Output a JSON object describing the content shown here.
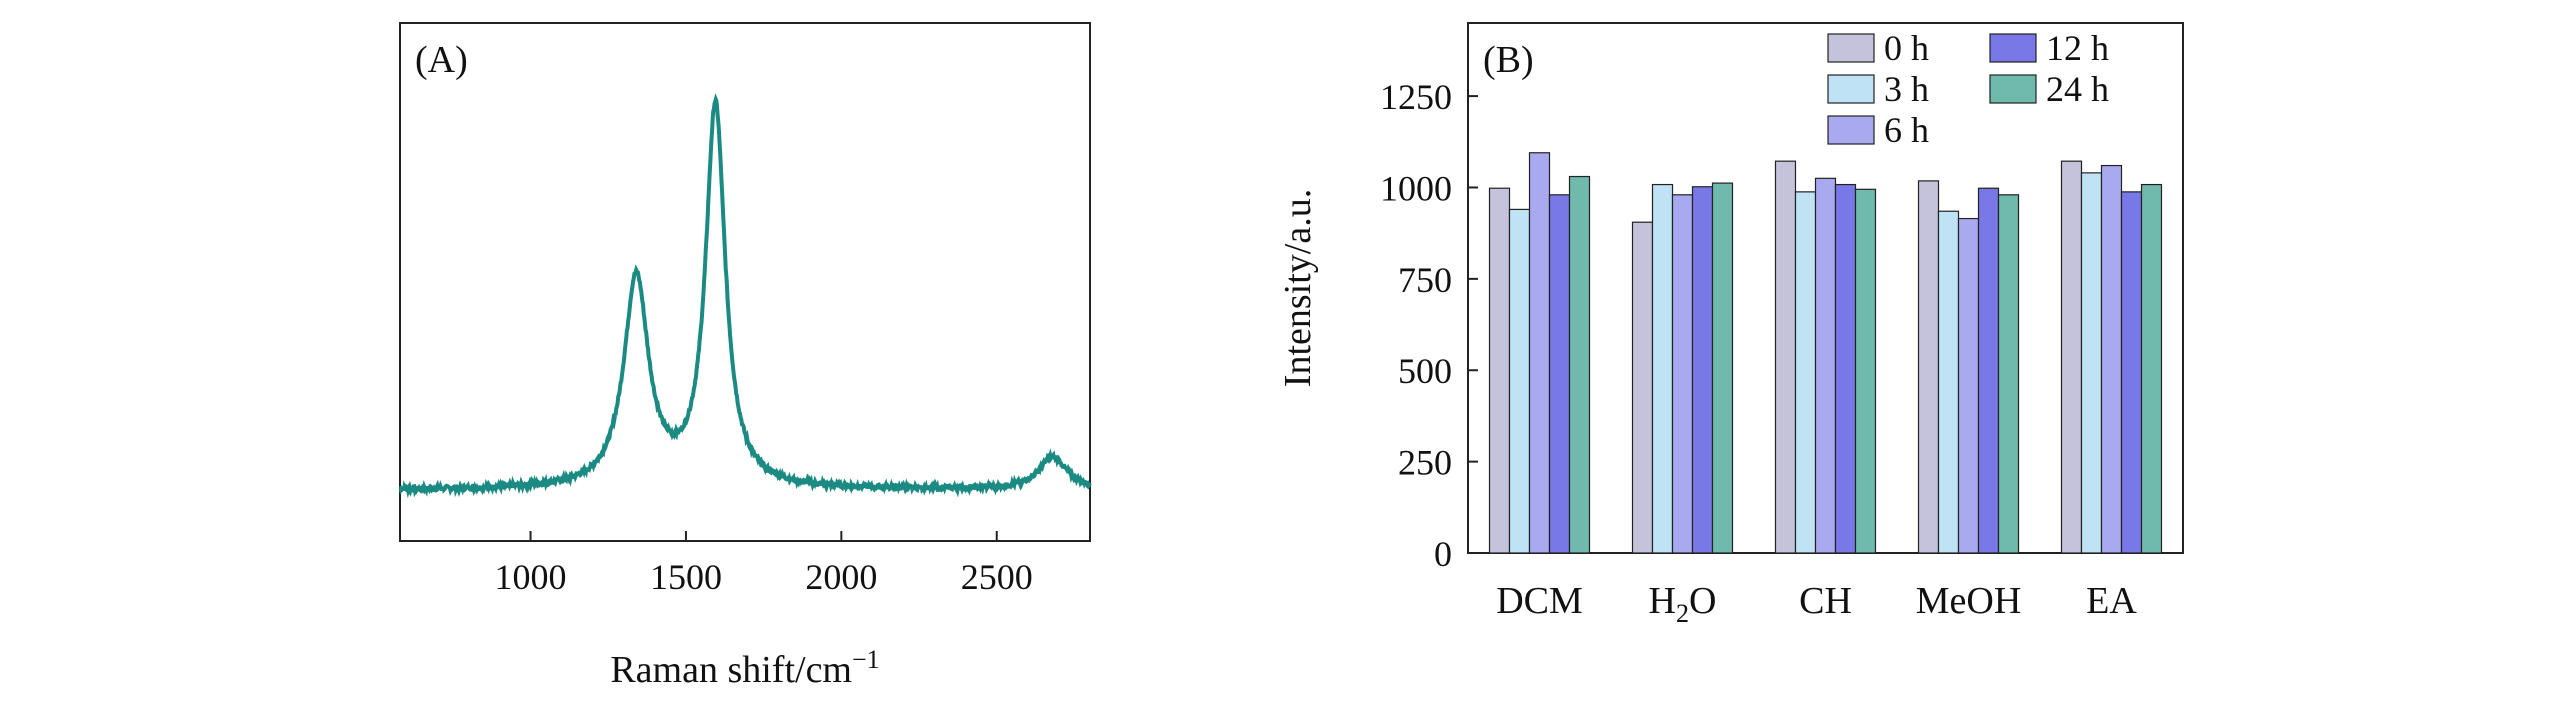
{
  "chart_data": [
    {
      "type": "line",
      "panel_label": "(A)",
      "xlabel": "Raman shift/cm",
      "xlabel_sup": "−1",
      "ylabel": "",
      "xlim": [
        580,
        2800
      ],
      "ylim": [
        0,
        1
      ],
      "xticks": [
        "1000",
        "1500",
        "2000",
        "2500"
      ],
      "xtick_values": [
        1000,
        1500,
        2000,
        2500
      ],
      "color": "#1a8a82",
      "peaks": [
        {
          "center": 1340,
          "height": 0.55,
          "width": 48
        },
        {
          "center": 1595,
          "height": 1.0,
          "width": 38
        },
        {
          "center": 2680,
          "height": 0.085,
          "width": 55
        }
      ],
      "baseline": 0.0
    },
    {
      "type": "bar",
      "panel_label": "(B)",
      "ylabel": "Intensity/a.u.",
      "ylim": [
        0,
        1450
      ],
      "yticks": [
        "0",
        "250",
        "500",
        "750",
        "1000",
        "1250"
      ],
      "ytick_values": [
        0,
        250,
        500,
        750,
        1000,
        1250
      ],
      "categories": [
        "DCM",
        "H2O",
        "CH",
        "MeOH",
        "EA"
      ],
      "category_labels": [
        {
          "main": "DCM",
          "sub": "",
          "tail": ""
        },
        {
          "main": "H",
          "sub": "2",
          "tail": "O"
        },
        {
          "main": "CH",
          "sub": "",
          "tail": ""
        },
        {
          "main": "MeOH",
          "sub": "",
          "tail": ""
        },
        {
          "main": "EA",
          "sub": "",
          "tail": ""
        }
      ],
      "series": [
        {
          "name": "0 h",
          "color": "#c5c2dc",
          "values": [
            998,
            905,
            1072,
            1018,
            1072
          ]
        },
        {
          "name": "3 h",
          "color": "#bfe3f5",
          "values": [
            940,
            1008,
            988,
            935,
            1040
          ]
        },
        {
          "name": "6 h",
          "color": "#a9a9ef",
          "values": [
            1095,
            980,
            1025,
            915,
            1060
          ]
        },
        {
          "name": "12 h",
          "color": "#7878e6",
          "values": [
            980,
            1002,
            1008,
            998,
            988
          ]
        },
        {
          "name": "24 h",
          "color": "#6fb9ad",
          "values": [
            1030,
            1012,
            995,
            980,
            1008
          ]
        }
      ],
      "legend_position": "top-right"
    }
  ]
}
